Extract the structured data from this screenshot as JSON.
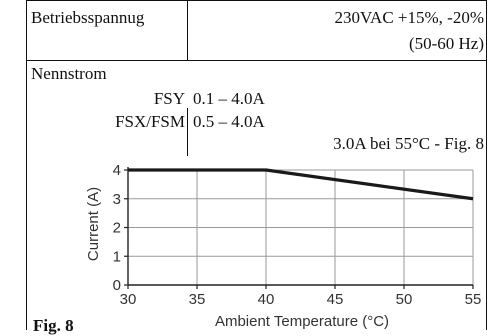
{
  "table": {
    "rows": [
      {
        "label": "Betriebsspannug",
        "value_line1": "230VAC +15%, -20%",
        "value_line2": "(50-60 Hz)"
      }
    ],
    "nennstrom": {
      "label": "Nennstrom",
      "items": [
        {
          "name": "FSY",
          "value": "0.1 – 4.0A"
        },
        {
          "name": "FSX/FSM",
          "value": "0.5 – 4.0A"
        }
      ],
      "note": "3.0A bei 55°C - Fig. 8"
    }
  },
  "figure": {
    "caption": "Fig. 8"
  },
  "chart_data": {
    "type": "line",
    "xlabel": "Ambient Temperature (°C)",
    "ylabel": "Current (A)",
    "xlim": [
      30,
      55
    ],
    "ylim": [
      0,
      4
    ],
    "x_ticks": [
      "30",
      "35",
      "40",
      "45",
      "50",
      "55"
    ],
    "y_ticks": [
      "0",
      "1",
      "2",
      "3",
      "4"
    ],
    "grid": true,
    "series": [
      {
        "x": [
          30,
          40,
          55
        ],
        "y": [
          4.0,
          4.0,
          3.0
        ],
        "color": "#1a1a1a"
      }
    ]
  }
}
